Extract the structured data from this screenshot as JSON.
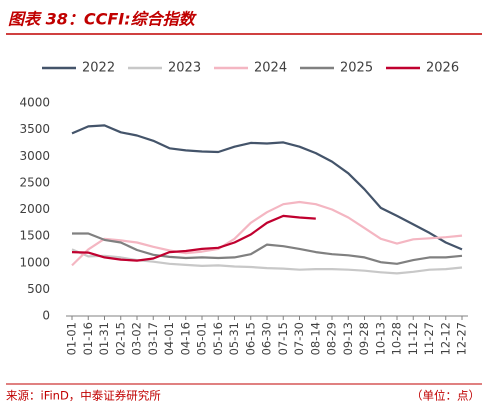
{
  "chart_data": {
    "type": "line",
    "title": "图表 38：CCFI:综合指数",
    "categories": [
      "01-01",
      "01-16",
      "01-31",
      "02-15",
      "03-02",
      "03-17",
      "04-01",
      "04-16",
      "05-01",
      "05-16",
      "05-31",
      "06-15",
      "06-30",
      "07-15",
      "07-30",
      "08-14",
      "08-29",
      "09-13",
      "09-28",
      "10-13",
      "10-28",
      "11-12",
      "11-27",
      "12-12",
      "12-27"
    ],
    "series": [
      {
        "name": "2022",
        "color": "#44546a",
        "values": [
          3430,
          3560,
          3580,
          3450,
          3390,
          3290,
          3150,
          3110,
          3090,
          3080,
          3180,
          3250,
          3240,
          3260,
          3180,
          3060,
          2900,
          2680,
          2380,
          2030,
          1880,
          1720,
          1560,
          1380,
          1250
        ]
      },
      {
        "name": "2023",
        "color": "#c8c8c8",
        "values": [
          1250,
          1120,
          1130,
          1100,
          1050,
          1020,
          980,
          960,
          940,
          950,
          930,
          920,
          900,
          890,
          870,
          880,
          880,
          870,
          850,
          820,
          800,
          830,
          870,
          880,
          910
        ]
      },
      {
        "name": "2024",
        "color": "#f4b6c2",
        "values": [
          950,
          1250,
          1450,
          1420,
          1380,
          1300,
          1230,
          1180,
          1210,
          1260,
          1450,
          1750,
          1950,
          2100,
          2140,
          2100,
          2000,
          1850,
          1650,
          1450,
          1360,
          1440,
          1460,
          1480,
          1510
        ]
      },
      {
        "name": "2025",
        "color": "#808080",
        "values": [
          1550,
          1550,
          1430,
          1380,
          1240,
          1150,
          1110,
          1090,
          1100,
          1090,
          1100,
          1160,
          1340,
          1310,
          1260,
          1200,
          1160,
          1140,
          1100,
          1010,
          980,
          1050,
          1100,
          1100,
          1130
        ]
      },
      {
        "name": "2026",
        "color": "#c0002f",
        "values": [
          1200,
          1190,
          1100,
          1060,
          1040,
          1080,
          1200,
          1220,
          1260,
          1280,
          1380,
          1530,
          1750,
          1880,
          1850,
          1830,
          null,
          null,
          null,
          null,
          null,
          null,
          null,
          null,
          null
        ]
      }
    ],
    "ylim": [
      0,
      4000
    ],
    "yticks": [
      0,
      500,
      1000,
      1500,
      2000,
      2500,
      3000,
      3500,
      4000
    ],
    "source": "来源：iFinD，中泰证券研究所",
    "unit": "（单位：点）"
  }
}
